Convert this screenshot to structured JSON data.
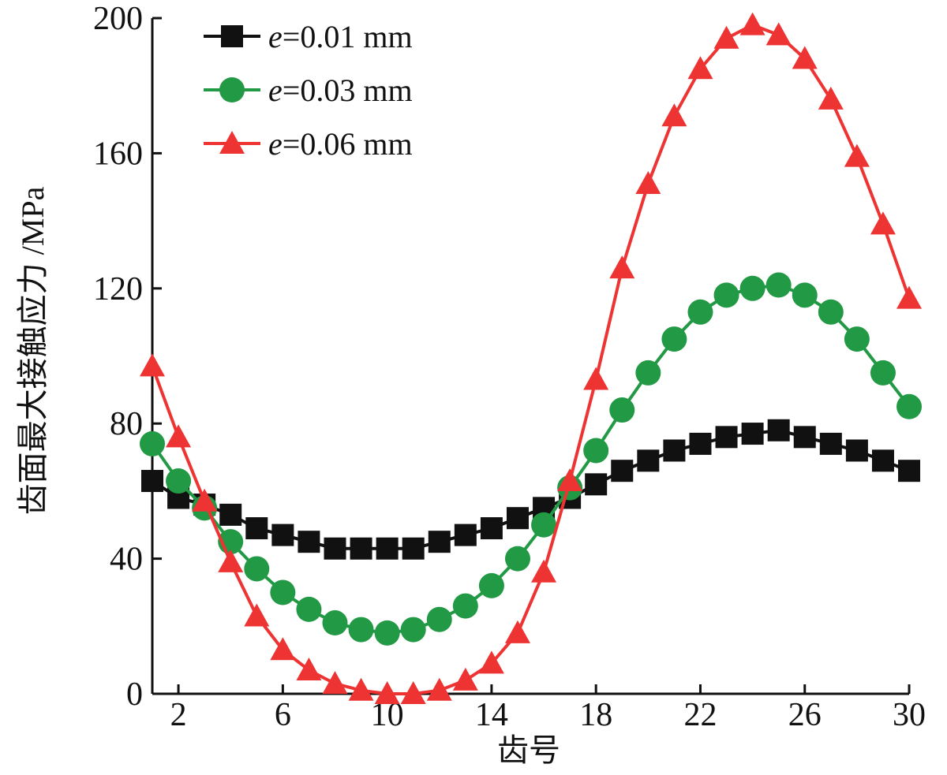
{
  "chart_data": {
    "type": "line",
    "title": "",
    "xlabel": "齿号",
    "ylabel": "齿面最大接触应力 /MPa",
    "xlim": [
      1,
      30
    ],
    "ylim": [
      0,
      200
    ],
    "xticks": [
      2,
      6,
      10,
      14,
      18,
      22,
      26,
      30
    ],
    "yticks": [
      0,
      40,
      80,
      120,
      160,
      200
    ],
    "xtick_labels": [
      "2",
      "6",
      "10",
      "14",
      "18",
      "22",
      "26",
      "30"
    ],
    "ytick_labels": [
      "0",
      "40",
      "80",
      "120",
      "160",
      "200"
    ],
    "grid": false,
    "legend_position": "top-left",
    "x": [
      1,
      2,
      3,
      4,
      5,
      6,
      7,
      8,
      9,
      10,
      11,
      12,
      13,
      14,
      15,
      16,
      17,
      18,
      19,
      20,
      21,
      22,
      23,
      24,
      25,
      26,
      27,
      28,
      29,
      30
    ],
    "series": [
      {
        "name_prefix": "e",
        "name_suffix": "=0.01 mm",
        "color": "#111111",
        "marker": "square",
        "values": [
          63,
          58,
          56,
          53,
          49,
          47,
          45,
          43,
          43,
          43,
          43,
          45,
          47,
          49,
          52,
          55,
          58,
          62,
          66,
          69,
          72,
          74,
          76,
          77,
          78,
          76,
          74,
          72,
          69,
          66
        ]
      },
      {
        "name_prefix": "e",
        "name_suffix": "=0.03 mm",
        "color": "#229944",
        "marker": "circle",
        "values": [
          74,
          63,
          55,
          45,
          37,
          30,
          25,
          21,
          19,
          18,
          19,
          22,
          26,
          32,
          40,
          50,
          61,
          72,
          84,
          95,
          105,
          113,
          118,
          120,
          121,
          118,
          113,
          105,
          95,
          85
        ]
      },
      {
        "name_prefix": "e",
        "name_suffix": "=0.06 mm",
        "color": "#ee3333",
        "marker": "triangle",
        "values": [
          97,
          76,
          57,
          39,
          23,
          13,
          7,
          3,
          1,
          0,
          0,
          1,
          4,
          9,
          18,
          36,
          63,
          93,
          126,
          151,
          171,
          185,
          194,
          198,
          195,
          188,
          176,
          159,
          139,
          117
        ]
      }
    ]
  }
}
